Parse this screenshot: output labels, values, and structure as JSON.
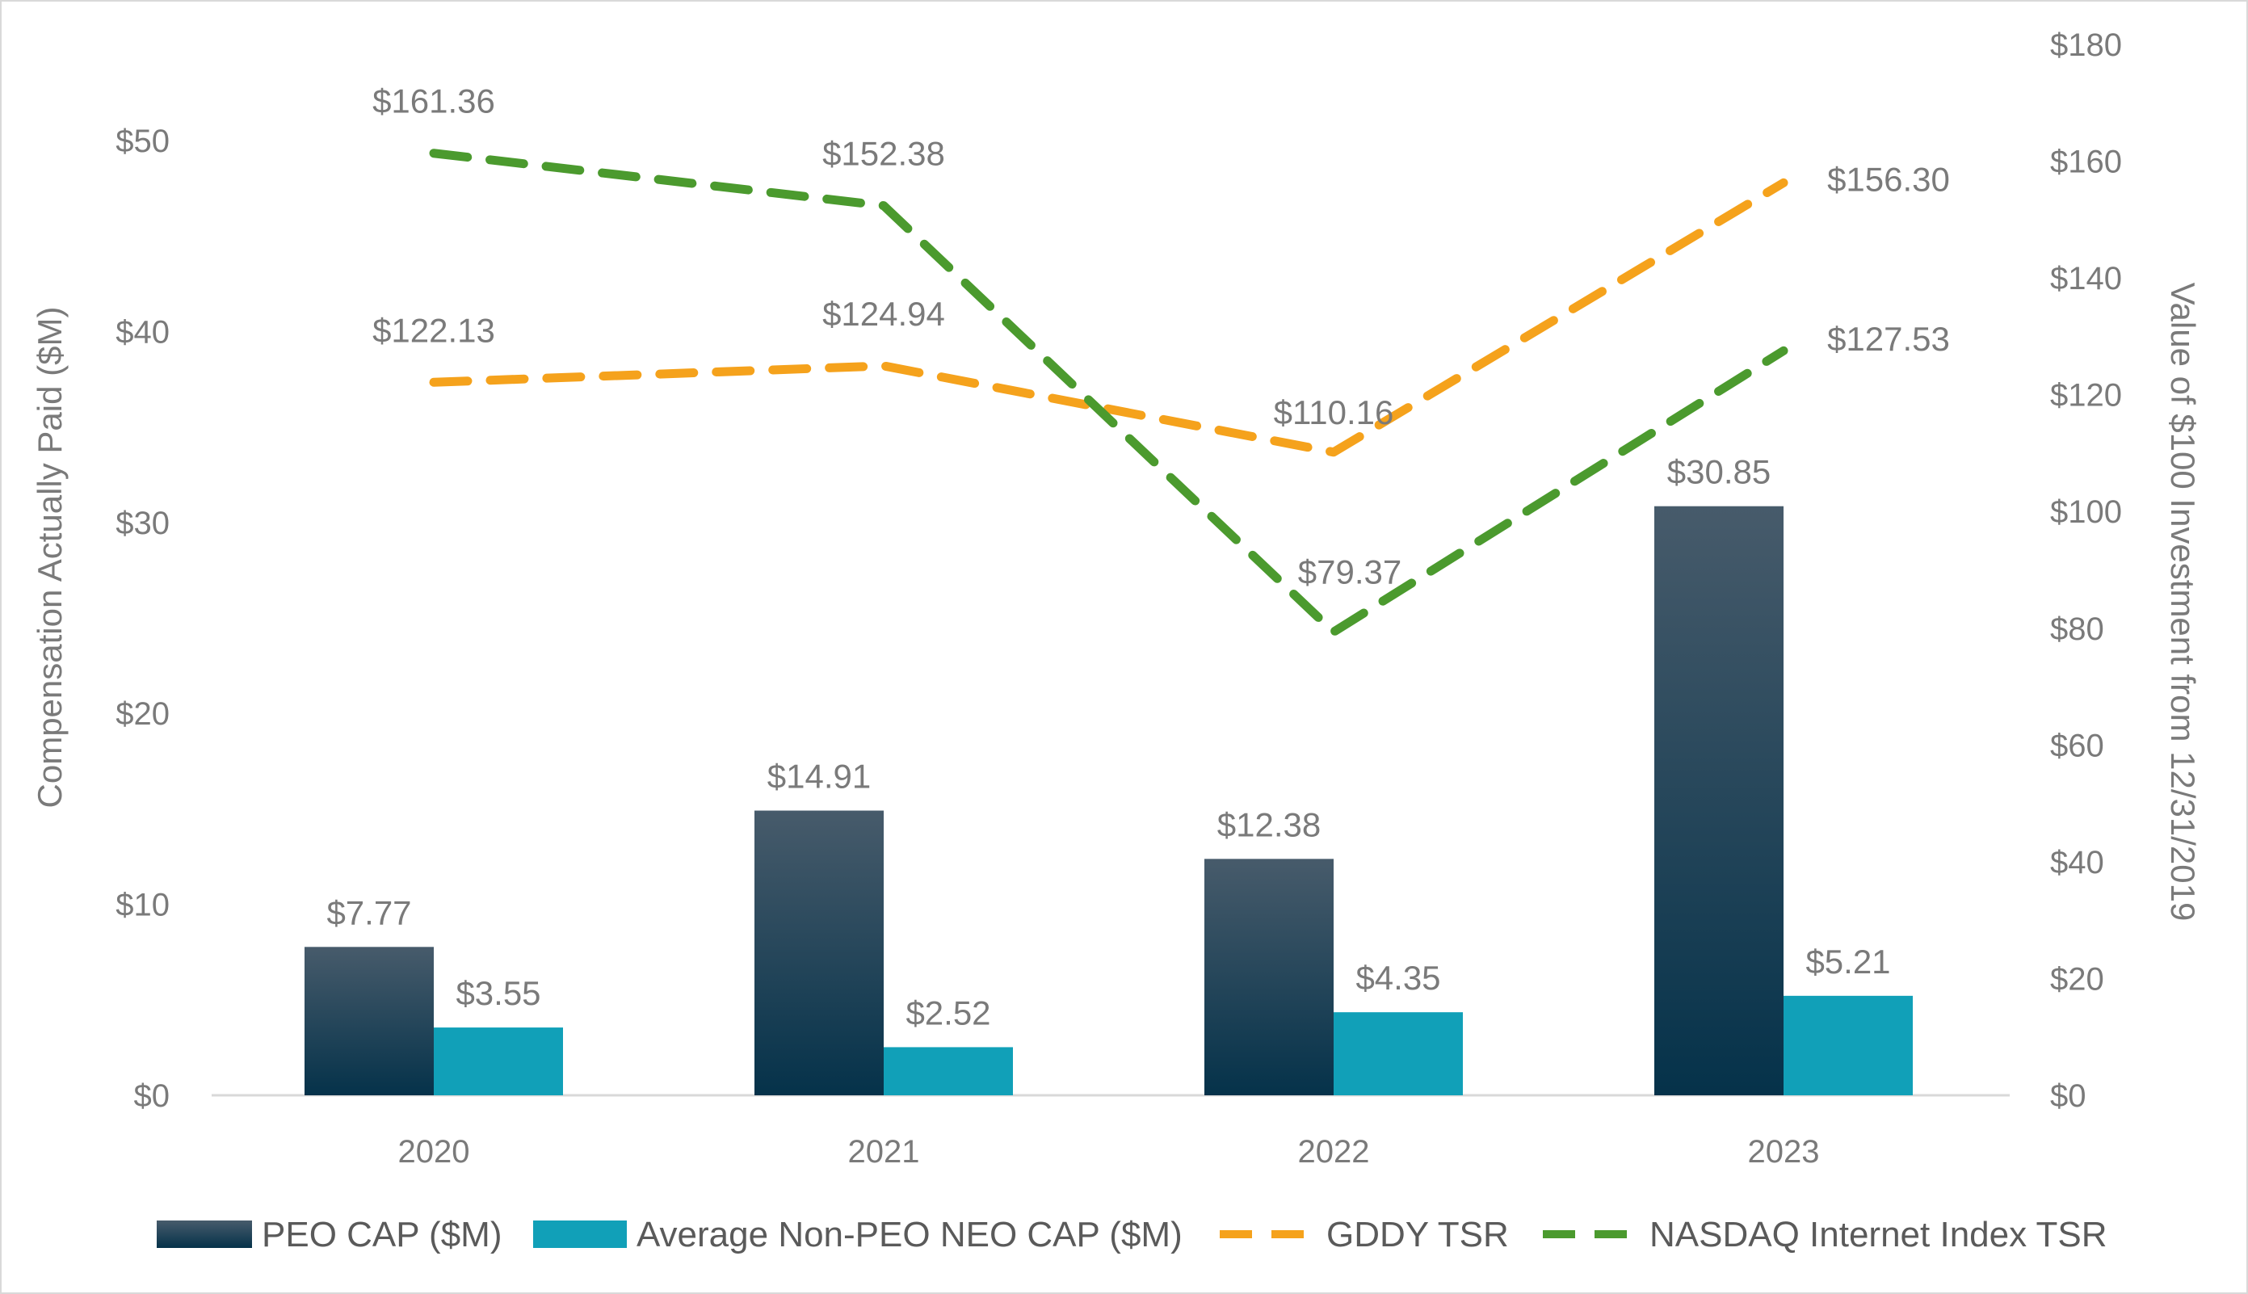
{
  "chart_data": {
    "type": "bar",
    "categories": [
      "2020",
      "2021",
      "2022",
      "2023"
    ],
    "left_axis": {
      "title": "Compensation Actually Paid ($M)",
      "range": [
        0,
        55
      ],
      "ticks": [
        0,
        10,
        20,
        30,
        40,
        50
      ],
      "tick_labels": [
        "$0",
        "$10",
        "$20",
        "$30",
        "$40",
        "$50"
      ]
    },
    "right_axis": {
      "title": "Value of $100 Investment from 12/31/2019",
      "range": [
        0,
        180
      ],
      "ticks": [
        0,
        20,
        40,
        60,
        80,
        100,
        120,
        140,
        160,
        180
      ],
      "tick_labels": [
        "$0",
        "$20",
        "$40",
        "$60",
        "$80",
        "$100",
        "$120",
        "$140",
        "$160",
        "$180"
      ]
    },
    "bar_series": [
      {
        "name": "PEO CAP ($M)",
        "values": [
          7.77,
          14.91,
          12.38,
          30.85
        ],
        "labels": [
          "$7.77",
          "$14.91",
          "$12.38",
          "$30.85"
        ],
        "color_top": "#475b6b",
        "color_bottom": "#05324a"
      },
      {
        "name": "Average Non-PEO NEO CAP ($M)",
        "values": [
          3.55,
          2.52,
          4.35,
          5.21
        ],
        "labels": [
          "$3.55",
          "$2.52",
          "$4.35",
          "$5.21"
        ],
        "color": "#11a0b8"
      }
    ],
    "line_series": [
      {
        "name": "GDDY TSR",
        "values": [
          122.13,
          124.94,
          110.16,
          156.3
        ],
        "labels": [
          "$122.13",
          "$124.94",
          "$110.16",
          "$156.30"
        ],
        "color": "#f5a21c",
        "style": "dashed"
      },
      {
        "name": "NASDAQ Internet Index TSR",
        "values": [
          161.36,
          152.38,
          79.37,
          127.53
        ],
        "labels": [
          "$161.36",
          "$152.38",
          "$79.37",
          "$127.53"
        ],
        "color": "#4b9a2e",
        "style": "dashed"
      }
    ],
    "grid": false,
    "legend_position": "bottom"
  }
}
